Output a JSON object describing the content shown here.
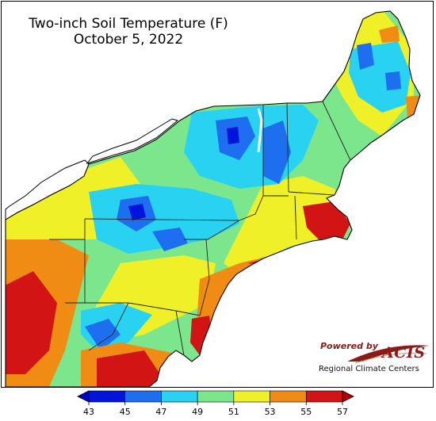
{
  "title": "Two-inch Soil Temperature (F)",
  "subtitle": "October 5, 2022",
  "credit": {
    "powered_by": "Powered by",
    "brand": "ACIS",
    "organization": "Regional Climate Centers"
  },
  "legend": {
    "ticks": [
      "43",
      "45",
      "47",
      "49",
      "51",
      "53",
      "55",
      "57"
    ],
    "colors": [
      "#0014dc",
      "#1e6ef0",
      "#28d2f0",
      "#7ce68c",
      "#f0f028",
      "#f08c14",
      "#d21414"
    ],
    "underflow_color": "#0000c8",
    "overflow_color": "#b40000"
  },
  "region_colors": {
    "cold_43_45": "#0014dc",
    "cool_45_47": "#1e6ef0",
    "mild_47_49": "#28d2f0",
    "mid_49_51": "#7ce68c",
    "warm_51_53": "#f0f028",
    "warmer_53_55": "#f08c14",
    "hot_55_57": "#d21414"
  }
}
